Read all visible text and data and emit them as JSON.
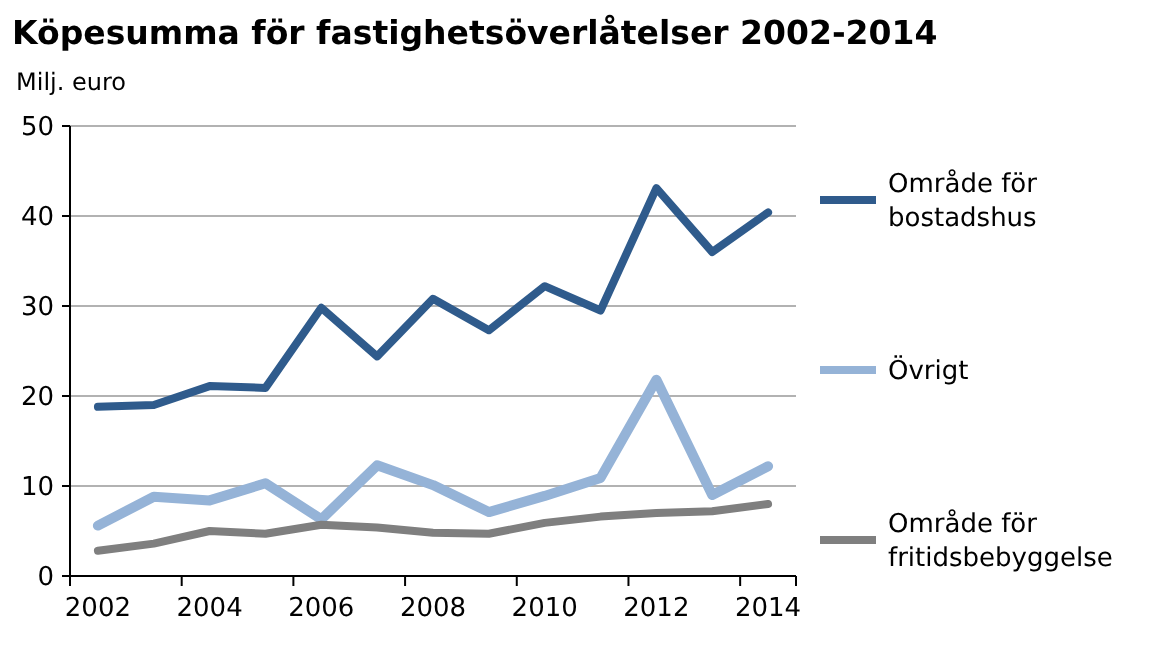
{
  "chart_data": {
    "type": "line",
    "title": "Köpesumma för fastighetsöverlåtelser 2002-2014",
    "ylabel": "Milj. euro",
    "categories": [
      "2002",
      null,
      "2004",
      null,
      "2006",
      null,
      "2008",
      null,
      "2010",
      null,
      "2012",
      null,
      "2014"
    ],
    "series": [
      {
        "name": "Område för bostadshus",
        "color": "#2f5b8c",
        "values": [
          18.8,
          19,
          21.1,
          20.9,
          29.8,
          24.4,
          30.8,
          27.3,
          32.2,
          29.5,
          43.1,
          36,
          40.4
        ]
      },
      {
        "name": "Övrigt",
        "color": "#95b3d7",
        "values": [
          5.6,
          8.8,
          8.4,
          10.3,
          6.3,
          12.3,
          10.1,
          7.1,
          8.9,
          10.9,
          21.8,
          9,
          12.2
        ]
      },
      {
        "name": "Område för fritidsbebyggelse",
        "color": "#7f7f7f",
        "values": [
          2.8,
          3.6,
          5,
          4.7,
          5.7,
          5.4,
          4.8,
          4.7,
          5.9,
          6.6,
          7,
          7.2,
          8
        ]
      }
    ],
    "ylim": [
      0,
      50
    ],
    "yticks": [
      0,
      10,
      20,
      30,
      40,
      50
    ],
    "grid": "y",
    "legend": "right",
    "marker": "none",
    "line_style": "solid"
  }
}
